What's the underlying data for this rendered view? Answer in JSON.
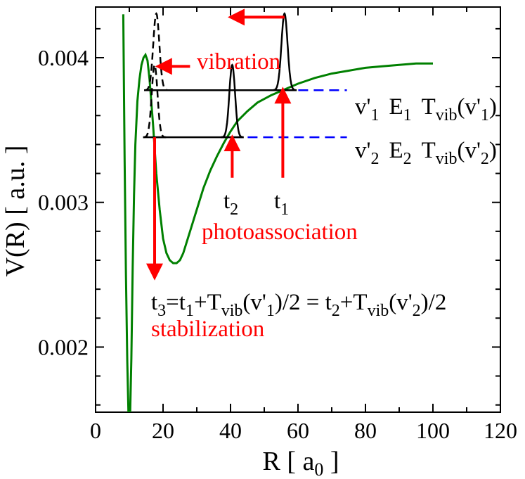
{
  "chart_data": {
    "type": "line",
    "title": "",
    "xlabel": "R [ a",
    "xlabel_sub": "0",
    "xlabel_end": " ]",
    "ylabel": "V(R) [ a.u. ]",
    "xlim": [
      0,
      120
    ],
    "ylim": [
      0.00155,
      0.00435
    ],
    "xticks": [
      0,
      20,
      40,
      60,
      80,
      100,
      120
    ],
    "xtick_labels": [
      "0",
      "20",
      "40",
      "60",
      "80",
      "100",
      "120"
    ],
    "yticks": [
      0.002,
      0.003,
      0.004
    ],
    "ytick_labels": [
      "0.002",
      "0.003",
      "0.004"
    ],
    "potential_curve": {
      "name": "V(R)",
      "color": "#008000",
      "x": [
        8.2,
        8.6,
        9.0,
        9.4,
        9.8,
        10.2,
        10.6,
        11.0,
        11.4,
        11.8,
        12.4,
        13.0,
        13.6,
        14.2,
        14.8,
        15.4,
        16.0,
        17.0,
        18.0,
        19.0,
        20.0,
        21.0,
        22.0,
        23.0,
        24.0,
        25.0,
        26.0,
        28.0,
        30.0,
        32.0,
        34.0,
        36.0,
        38.0,
        40.0,
        42.0,
        45.0,
        48.0,
        52.0,
        56.0,
        60.0,
        65.0,
        70.0,
        75.0,
        80.0,
        85.0,
        90.0,
        95.0,
        100.0
      ],
      "y": [
        0.0043,
        0.0033,
        0.0025,
        0.0019,
        0.0015,
        0.0015,
        0.00192,
        0.00255,
        0.00305,
        0.0034,
        0.0037,
        0.00385,
        0.00395,
        0.004,
        0.00402,
        0.00398,
        0.00385,
        0.00355,
        0.0032,
        0.00295,
        0.00275,
        0.00265,
        0.0026,
        0.00258,
        0.00258,
        0.0026,
        0.00265,
        0.0028,
        0.00295,
        0.0031,
        0.00322,
        0.00332,
        0.00341,
        0.00349,
        0.00356,
        0.00363,
        0.00369,
        0.00374,
        0.00378,
        0.00382,
        0.00386,
        0.00389,
        0.00391,
        0.00393,
        0.00394,
        0.00395,
        0.00396,
        0.00396
      ]
    },
    "energy_levels": [
      {
        "name": "E1",
        "y": 0.003775,
        "x_start": 16.2,
        "x_end": 55.5,
        "dash_end": 74.5
      },
      {
        "name": "E2",
        "y": 0.00345,
        "x_start": 17.5,
        "x_end": 40.5,
        "dash_end": 74.5
      }
    ],
    "wavepackets": [
      {
        "name": "packet-t1-outer",
        "center": 56.0,
        "base": 0.003775,
        "amplitude": 0.00053,
        "width": 0.9,
        "style": "solid"
      },
      {
        "name": "packet-t2-outer",
        "center": 40.5,
        "base": 0.00345,
        "amplitude": 0.0005,
        "width": 0.85,
        "style": "solid"
      },
      {
        "name": "packet-inner-1",
        "center": 18.0,
        "base": 0.003775,
        "amplitude": 0.00053,
        "width": 0.9,
        "style": "dashed"
      },
      {
        "name": "packet-inner-2",
        "center": 17.5,
        "base": 0.00345,
        "amplitude": 0.0005,
        "width": 0.85,
        "style": "dashed"
      }
    ],
    "arrows": [
      {
        "name": "arrow-vibration-top",
        "from": [
          56,
          0.00428
        ],
        "to": [
          40,
          0.00428
        ]
      },
      {
        "name": "arrow-vibration-mid",
        "from": [
          28,
          0.00394
        ],
        "to": [
          18.5,
          0.00394
        ]
      },
      {
        "name": "arrow-photoassoc-t1",
        "from": [
          55.5,
          0.00317
        ],
        "to": [
          55.5,
          0.00378
        ]
      },
      {
        "name": "arrow-photoassoc-t2",
        "from": [
          40.5,
          0.00317
        ],
        "to": [
          40.5,
          0.00345
        ]
      },
      {
        "name": "arrow-stabilization",
        "from": [
          17.5,
          0.00345
        ],
        "to": [
          17.5,
          0.00248
        ]
      }
    ],
    "annotations": {
      "vibration": "vibration",
      "photoassociation": "photoassociation",
      "stabilization": "stabilization",
      "t1": "t",
      "t1_sub": "1",
      "t2": "t",
      "t2_sub": "2",
      "level1": {
        "v": "v'",
        "v_sub": "1",
        "E": "E",
        "E_sub": "1",
        "T": "T",
        "T_sub": "vib",
        "T_arg_open": "(v'",
        "T_arg_sub": "1",
        "T_arg_close": ")"
      },
      "level2": {
        "v": "v'",
        "v_sub": "2",
        "E": "E",
        "E_sub": "2",
        "T": "T",
        "T_sub": "vib",
        "T_arg_open": "(v'",
        "T_arg_sub": "2",
        "T_arg_close": ")"
      },
      "t3_formula": {
        "p1": "t",
        "p1_sub": "3",
        "p2": "=t",
        "p2_sub": "1",
        "p3": "+T",
        "p3_sub": "vib",
        "p4": "(v'",
        "p4_sub": "1",
        "p5": ")/2 = t",
        "p5_sub": "2",
        "p6": "+T",
        "p6_sub": "vib",
        "p7": "(v'",
        "p7_sub": "2",
        "p8": ")/2"
      }
    },
    "colors": {
      "curve": "#008000",
      "arrow": "#ff0000",
      "level": "#000000",
      "dash": "#0000ff",
      "label_red": "#ff0000"
    }
  }
}
